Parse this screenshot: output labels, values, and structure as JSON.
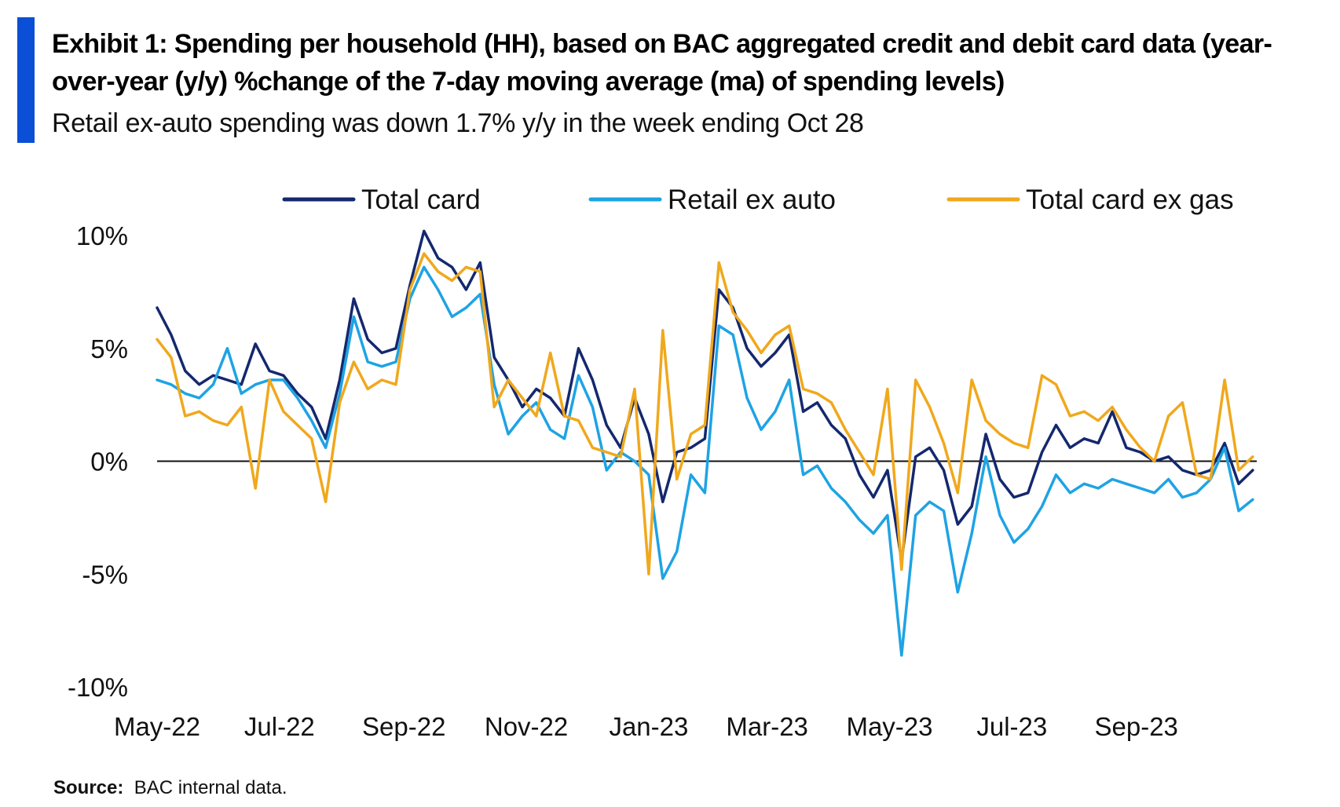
{
  "header": {
    "title": "Exhibit 1: Spending per household (HH), based on BAC aggregated credit and debit card data (year-over-year (y/y)  %change of the 7-day moving average (ma) of spending levels)",
    "subtitle": "Retail ex-auto spending was down 1.7% y/y in the week ending Oct 28"
  },
  "footer": {
    "source_label": "Source:",
    "source_text": "BAC internal data."
  },
  "colors": {
    "total_card": "#14286e",
    "retail_ex_auto": "#1ea3e4",
    "total_card_ex_gas": "#f0a81c",
    "accent": "#0a4fd6"
  },
  "chart_data": {
    "type": "line",
    "title": "",
    "xlabel": "",
    "ylabel": "",
    "ylim": [
      -10,
      10
    ],
    "yticks": [
      {
        "value": 10,
        "label": "10%"
      },
      {
        "value": 5,
        "label": "5%"
      },
      {
        "value": 0,
        "label": "0%"
      },
      {
        "value": -5,
        "label": "-5%"
      },
      {
        "value": -10,
        "label": "-10%"
      }
    ],
    "xlim": [
      "2022-05-01",
      "2023-10-31"
    ],
    "xticks": [
      {
        "date": "2022-05-01",
        "label": "May-22"
      },
      {
        "date": "2022-07-01",
        "label": "Jul-22"
      },
      {
        "date": "2022-09-01",
        "label": "Sep-22"
      },
      {
        "date": "2022-11-01",
        "label": "Nov-22"
      },
      {
        "date": "2023-01-01",
        "label": "Jan-23"
      },
      {
        "date": "2023-03-01",
        "label": "Mar-23"
      },
      {
        "date": "2023-05-01",
        "label": "May-23"
      },
      {
        "date": "2023-07-01",
        "label": "Jul-23"
      },
      {
        "date": "2023-09-01",
        "label": "Sep-23"
      }
    ],
    "zero_line": true,
    "grid": false,
    "legend_position": "top",
    "series": [
      {
        "name": "Total card",
        "color": "#14286e",
        "points": [
          [
            "2022-05-01",
            6.8
          ],
          [
            "2022-05-08",
            5.6
          ],
          [
            "2022-05-15",
            4.0
          ],
          [
            "2022-05-22",
            3.4
          ],
          [
            "2022-05-29",
            3.8
          ],
          [
            "2022-06-05",
            3.6
          ],
          [
            "2022-06-12",
            3.4
          ],
          [
            "2022-06-19",
            5.2
          ],
          [
            "2022-06-26",
            4.0
          ],
          [
            "2022-07-03",
            3.8
          ],
          [
            "2022-07-10",
            3.0
          ],
          [
            "2022-07-17",
            2.4
          ],
          [
            "2022-07-24",
            1.0
          ],
          [
            "2022-07-31",
            3.6
          ],
          [
            "2022-08-07",
            7.2
          ],
          [
            "2022-08-14",
            5.4
          ],
          [
            "2022-08-21",
            4.8
          ],
          [
            "2022-08-28",
            5.0
          ],
          [
            "2022-09-04",
            7.8
          ],
          [
            "2022-09-11",
            10.2
          ],
          [
            "2022-09-18",
            9.0
          ],
          [
            "2022-09-25",
            8.6
          ],
          [
            "2022-10-02",
            7.6
          ],
          [
            "2022-10-09",
            8.8
          ],
          [
            "2022-10-16",
            4.6
          ],
          [
            "2022-10-23",
            3.6
          ],
          [
            "2022-10-30",
            2.4
          ],
          [
            "2022-11-06",
            3.2
          ],
          [
            "2022-11-13",
            2.8
          ],
          [
            "2022-11-20",
            2.0
          ],
          [
            "2022-11-27",
            5.0
          ],
          [
            "2022-12-04",
            3.6
          ],
          [
            "2022-12-11",
            1.6
          ],
          [
            "2022-12-18",
            0.6
          ],
          [
            "2022-12-25",
            2.8
          ],
          [
            "2023-01-01",
            1.2
          ],
          [
            "2023-01-08",
            -1.8
          ],
          [
            "2023-01-15",
            0.4
          ],
          [
            "2023-01-22",
            0.6
          ],
          [
            "2023-01-29",
            1.0
          ],
          [
            "2023-02-05",
            7.6
          ],
          [
            "2023-02-12",
            6.8
          ],
          [
            "2023-02-19",
            5.0
          ],
          [
            "2023-02-26",
            4.2
          ],
          [
            "2023-03-05",
            4.8
          ],
          [
            "2023-03-12",
            5.6
          ],
          [
            "2023-03-19",
            2.2
          ],
          [
            "2023-03-26",
            2.6
          ],
          [
            "2023-04-02",
            1.6
          ],
          [
            "2023-04-09",
            1.0
          ],
          [
            "2023-04-16",
            -0.6
          ],
          [
            "2023-04-23",
            -1.6
          ],
          [
            "2023-04-30",
            -0.4
          ],
          [
            "2023-05-07",
            -4.4
          ],
          [
            "2023-05-14",
            0.2
          ],
          [
            "2023-05-21",
            0.6
          ],
          [
            "2023-05-28",
            -0.4
          ],
          [
            "2023-06-04",
            -2.8
          ],
          [
            "2023-06-11",
            -2.0
          ],
          [
            "2023-06-18",
            1.2
          ],
          [
            "2023-06-25",
            -0.8
          ],
          [
            "2023-07-02",
            -1.6
          ],
          [
            "2023-07-09",
            -1.4
          ],
          [
            "2023-07-16",
            0.4
          ],
          [
            "2023-07-23",
            1.6
          ],
          [
            "2023-07-30",
            0.6
          ],
          [
            "2023-08-06",
            1.0
          ],
          [
            "2023-08-13",
            0.8
          ],
          [
            "2023-08-20",
            2.2
          ],
          [
            "2023-08-27",
            0.6
          ],
          [
            "2023-09-03",
            0.4
          ],
          [
            "2023-09-10",
            0.0
          ],
          [
            "2023-09-17",
            0.2
          ],
          [
            "2023-09-24",
            -0.4
          ],
          [
            "2023-10-01",
            -0.6
          ],
          [
            "2023-10-08",
            -0.4
          ],
          [
            "2023-10-15",
            0.8
          ],
          [
            "2023-10-22",
            -1.0
          ],
          [
            "2023-10-29",
            -0.4
          ]
        ]
      },
      {
        "name": "Retail ex auto",
        "color": "#1ea3e4",
        "points": [
          [
            "2022-05-01",
            3.6
          ],
          [
            "2022-05-08",
            3.4
          ],
          [
            "2022-05-15",
            3.0
          ],
          [
            "2022-05-22",
            2.8
          ],
          [
            "2022-05-29",
            3.4
          ],
          [
            "2022-06-05",
            5.0
          ],
          [
            "2022-06-12",
            3.0
          ],
          [
            "2022-06-19",
            3.4
          ],
          [
            "2022-06-26",
            3.6
          ],
          [
            "2022-07-03",
            3.6
          ],
          [
            "2022-07-10",
            2.8
          ],
          [
            "2022-07-17",
            1.8
          ],
          [
            "2022-07-24",
            0.6
          ],
          [
            "2022-07-31",
            3.0
          ],
          [
            "2022-08-07",
            6.4
          ],
          [
            "2022-08-14",
            4.4
          ],
          [
            "2022-08-21",
            4.2
          ],
          [
            "2022-08-28",
            4.4
          ],
          [
            "2022-09-04",
            7.2
          ],
          [
            "2022-09-11",
            8.6
          ],
          [
            "2022-09-18",
            7.6
          ],
          [
            "2022-09-25",
            6.4
          ],
          [
            "2022-10-02",
            6.8
          ],
          [
            "2022-10-09",
            7.4
          ],
          [
            "2022-10-16",
            3.4
          ],
          [
            "2022-10-23",
            1.2
          ],
          [
            "2022-10-30",
            2.0
          ],
          [
            "2022-11-06",
            2.6
          ],
          [
            "2022-11-13",
            1.4
          ],
          [
            "2022-11-20",
            1.0
          ],
          [
            "2022-11-27",
            3.8
          ],
          [
            "2022-12-04",
            2.4
          ],
          [
            "2022-12-11",
            -0.4
          ],
          [
            "2022-12-18",
            0.4
          ],
          [
            "2022-12-25",
            0.0
          ],
          [
            "2023-01-01",
            -0.6
          ],
          [
            "2023-01-08",
            -5.2
          ],
          [
            "2023-01-15",
            -4.0
          ],
          [
            "2023-01-22",
            -0.6
          ],
          [
            "2023-01-29",
            -1.4
          ],
          [
            "2023-02-05",
            6.0
          ],
          [
            "2023-02-12",
            5.6
          ],
          [
            "2023-02-19",
            2.8
          ],
          [
            "2023-02-26",
            1.4
          ],
          [
            "2023-03-05",
            2.2
          ],
          [
            "2023-03-12",
            3.6
          ],
          [
            "2023-03-19",
            -0.6
          ],
          [
            "2023-03-26",
            -0.2
          ],
          [
            "2023-04-02",
            -1.2
          ],
          [
            "2023-04-09",
            -1.8
          ],
          [
            "2023-04-16",
            -2.6
          ],
          [
            "2023-04-23",
            -3.2
          ],
          [
            "2023-04-30",
            -2.4
          ],
          [
            "2023-05-07",
            -8.6
          ],
          [
            "2023-05-14",
            -2.4
          ],
          [
            "2023-05-21",
            -1.8
          ],
          [
            "2023-05-28",
            -2.2
          ],
          [
            "2023-06-04",
            -5.8
          ],
          [
            "2023-06-11",
            -3.2
          ],
          [
            "2023-06-18",
            0.2
          ],
          [
            "2023-06-25",
            -2.4
          ],
          [
            "2023-07-02",
            -3.6
          ],
          [
            "2023-07-09",
            -3.0
          ],
          [
            "2023-07-16",
            -2.0
          ],
          [
            "2023-07-23",
            -0.6
          ],
          [
            "2023-07-30",
            -1.4
          ],
          [
            "2023-08-06",
            -1.0
          ],
          [
            "2023-08-13",
            -1.2
          ],
          [
            "2023-08-20",
            -0.8
          ],
          [
            "2023-08-27",
            -1.0
          ],
          [
            "2023-09-03",
            -1.2
          ],
          [
            "2023-09-10",
            -1.4
          ],
          [
            "2023-09-17",
            -0.8
          ],
          [
            "2023-09-24",
            -1.6
          ],
          [
            "2023-10-01",
            -1.4
          ],
          [
            "2023-10-08",
            -0.8
          ],
          [
            "2023-10-15",
            0.6
          ],
          [
            "2023-10-22",
            -2.2
          ],
          [
            "2023-10-29",
            -1.7
          ]
        ]
      },
      {
        "name": "Total card ex gas",
        "color": "#f0a81c",
        "points": [
          [
            "2022-05-01",
            5.4
          ],
          [
            "2022-05-08",
            4.6
          ],
          [
            "2022-05-15",
            2.0
          ],
          [
            "2022-05-22",
            2.2
          ],
          [
            "2022-05-29",
            1.8
          ],
          [
            "2022-06-05",
            1.6
          ],
          [
            "2022-06-12",
            2.4
          ],
          [
            "2022-06-19",
            -1.2
          ],
          [
            "2022-06-26",
            3.6
          ],
          [
            "2022-07-03",
            2.2
          ],
          [
            "2022-07-10",
            1.6
          ],
          [
            "2022-07-17",
            1.0
          ],
          [
            "2022-07-24",
            -1.8
          ],
          [
            "2022-07-31",
            2.6
          ],
          [
            "2022-08-07",
            4.4
          ],
          [
            "2022-08-14",
            3.2
          ],
          [
            "2022-08-21",
            3.6
          ],
          [
            "2022-08-28",
            3.4
          ],
          [
            "2022-09-04",
            7.6
          ],
          [
            "2022-09-11",
            9.2
          ],
          [
            "2022-09-18",
            8.4
          ],
          [
            "2022-09-25",
            8.0
          ],
          [
            "2022-10-02",
            8.6
          ],
          [
            "2022-10-09",
            8.4
          ],
          [
            "2022-10-16",
            2.4
          ],
          [
            "2022-10-23",
            3.6
          ],
          [
            "2022-10-30",
            2.8
          ],
          [
            "2022-11-06",
            2.0
          ],
          [
            "2022-11-13",
            4.8
          ],
          [
            "2022-11-20",
            2.0
          ],
          [
            "2022-11-27",
            1.8
          ],
          [
            "2022-12-04",
            0.6
          ],
          [
            "2022-12-11",
            0.4
          ],
          [
            "2022-12-18",
            0.2
          ],
          [
            "2022-12-25",
            3.2
          ],
          [
            "2023-01-01",
            -5.0
          ],
          [
            "2023-01-08",
            5.8
          ],
          [
            "2023-01-15",
            -0.8
          ],
          [
            "2023-01-22",
            1.2
          ],
          [
            "2023-01-29",
            1.6
          ],
          [
            "2023-02-05",
            8.8
          ],
          [
            "2023-02-12",
            6.6
          ],
          [
            "2023-02-19",
            5.8
          ],
          [
            "2023-02-26",
            4.8
          ],
          [
            "2023-03-05",
            5.6
          ],
          [
            "2023-03-12",
            6.0
          ],
          [
            "2023-03-19",
            3.2
          ],
          [
            "2023-03-26",
            3.0
          ],
          [
            "2023-04-02",
            2.6
          ],
          [
            "2023-04-09",
            1.4
          ],
          [
            "2023-04-16",
            0.4
          ],
          [
            "2023-04-23",
            -0.6
          ],
          [
            "2023-04-30",
            3.2
          ],
          [
            "2023-05-07",
            -4.8
          ],
          [
            "2023-05-14",
            3.6
          ],
          [
            "2023-05-21",
            2.4
          ],
          [
            "2023-05-28",
            0.8
          ],
          [
            "2023-06-04",
            -1.4
          ],
          [
            "2023-06-11",
            3.6
          ],
          [
            "2023-06-18",
            1.8
          ],
          [
            "2023-06-25",
            1.2
          ],
          [
            "2023-07-02",
            0.8
          ],
          [
            "2023-07-09",
            0.6
          ],
          [
            "2023-07-16",
            3.8
          ],
          [
            "2023-07-23",
            3.4
          ],
          [
            "2023-07-30",
            2.0
          ],
          [
            "2023-08-06",
            2.2
          ],
          [
            "2023-08-13",
            1.8
          ],
          [
            "2023-08-20",
            2.4
          ],
          [
            "2023-08-27",
            1.4
          ],
          [
            "2023-09-03",
            0.6
          ],
          [
            "2023-09-10",
            0.0
          ],
          [
            "2023-09-17",
            2.0
          ],
          [
            "2023-09-24",
            2.6
          ],
          [
            "2023-10-01",
            -0.6
          ],
          [
            "2023-10-08",
            -0.8
          ],
          [
            "2023-10-15",
            3.6
          ],
          [
            "2023-10-22",
            -0.4
          ],
          [
            "2023-10-29",
            0.2
          ]
        ]
      }
    ]
  }
}
